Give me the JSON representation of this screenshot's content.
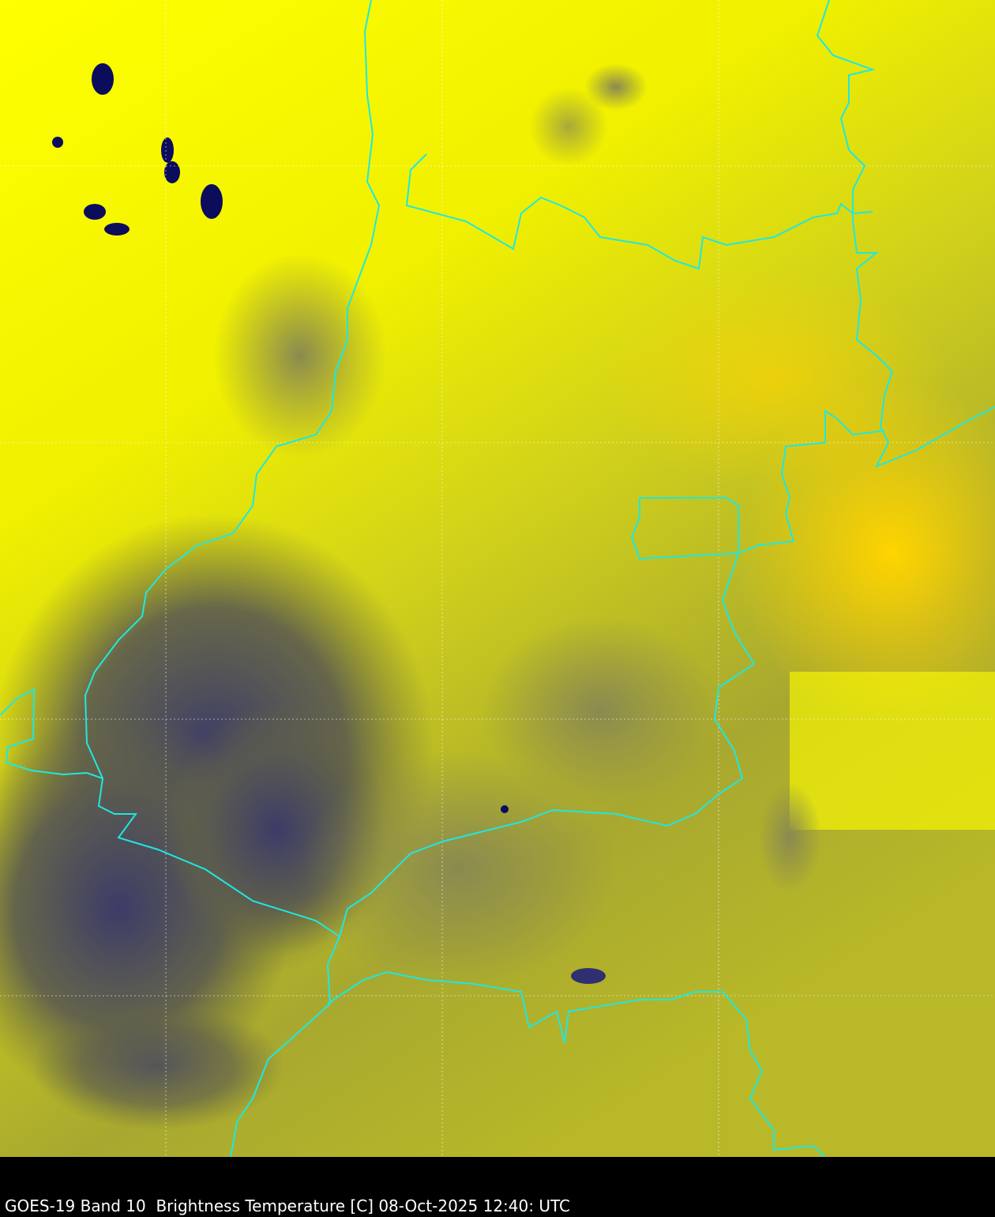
{
  "caption": "GOES-19 Band 10  Brightness Temperature [C] 08-Oct-2025 12:40: UTC",
  "colors": {
    "warm": "#ffff00",
    "warmest": "#ffd800",
    "mid": "#d8d818",
    "cold": "#6a6a48",
    "coldest": "#0a0a60",
    "border": "#1ee8e0",
    "grid": "#ffffff"
  }
}
